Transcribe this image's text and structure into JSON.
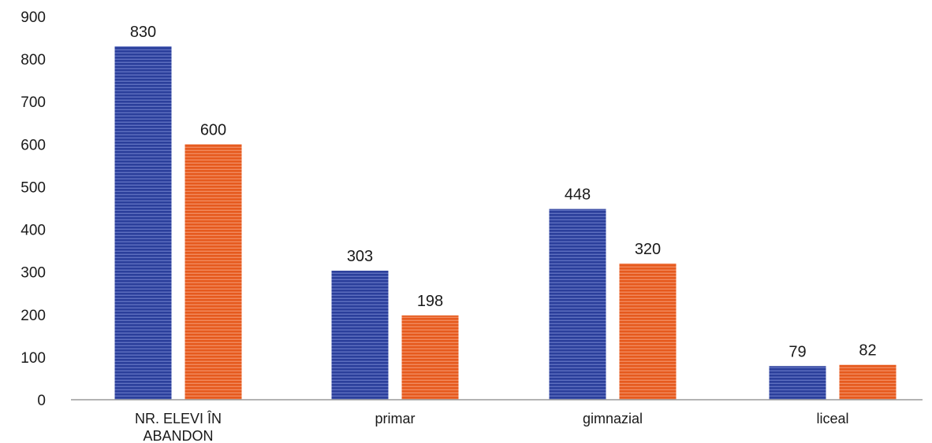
{
  "chart_data": {
    "type": "bar",
    "categories": [
      [
        "NR. ELEVI ÎN",
        "ABANDON"
      ],
      [
        "primar"
      ],
      [
        "gimnazial"
      ],
      [
        "liceal"
      ]
    ],
    "series": [
      {
        "values": [
          830,
          303,
          448,
          79
        ],
        "color": "#2b3f9b"
      },
      {
        "values": [
          600,
          198,
          320,
          82
        ],
        "color": "#e65a1e"
      }
    ],
    "ylim": [
      0,
      900
    ],
    "yticks": [
      "0",
      "100",
      "200",
      "300",
      "400",
      "500",
      "600",
      "700",
      "800",
      "900"
    ],
    "grid": false,
    "legend": "none"
  }
}
